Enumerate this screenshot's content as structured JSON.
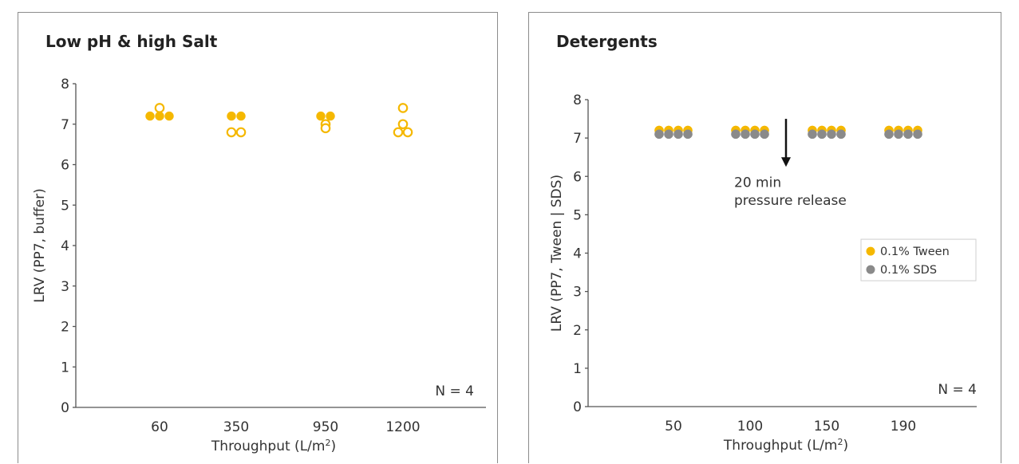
{
  "chart_data": [
    {
      "type": "scatter",
      "title": "Low pH & high Salt",
      "xlabel": "Throughput (L/m²)",
      "ylabel": "LRV (PP7, buffer)",
      "ylim": [
        0,
        8
      ],
      "yticks": [
        "0",
        "1",
        "2",
        "3",
        "4",
        "5",
        "6",
        "7",
        "8"
      ],
      "categories": [
        "60",
        "350",
        "950",
        "1200"
      ],
      "annotation": "N = 4",
      "grid": false,
      "marker_color": "#f5b800",
      "points": [
        {
          "x": "60",
          "y": 7.2,
          "filled": true
        },
        {
          "x": "60",
          "y": 7.2,
          "filled": true
        },
        {
          "x": "60",
          "y": 7.2,
          "filled": true
        },
        {
          "x": "60",
          "y": 7.4,
          "filled": false
        },
        {
          "x": "350",
          "y": 7.2,
          "filled": true
        },
        {
          "x": "350",
          "y": 7.2,
          "filled": true
        },
        {
          "x": "350",
          "y": 6.8,
          "filled": false
        },
        {
          "x": "350",
          "y": 6.8,
          "filled": false
        },
        {
          "x": "950",
          "y": 7.2,
          "filled": true
        },
        {
          "x": "950",
          "y": 7.2,
          "filled": true
        },
        {
          "x": "950",
          "y": 7.0,
          "filled": false
        },
        {
          "x": "950",
          "y": 6.9,
          "filled": false
        },
        {
          "x": "1200",
          "y": 7.4,
          "filled": false
        },
        {
          "x": "1200",
          "y": 7.0,
          "filled": false
        },
        {
          "x": "1200",
          "y": 6.8,
          "filled": false
        },
        {
          "x": "1200",
          "y": 6.8,
          "filled": false
        }
      ]
    },
    {
      "type": "scatter",
      "title": "Detergents",
      "xlabel": "Throughput (L/m²)",
      "ylabel": "LRV (PP7, Tween | SDS)",
      "ylim": [
        0,
        8
      ],
      "yticks": [
        "0",
        "1",
        "2",
        "3",
        "4",
        "5",
        "6",
        "7",
        "8"
      ],
      "categories": [
        "50",
        "100",
        "150",
        "190"
      ],
      "annotation": "N = 4",
      "grid": false,
      "arrow_annotation": [
        "20 min",
        "pressure release"
      ],
      "legend_position": "right",
      "series": [
        {
          "name": "0.1% Tween",
          "color": "#f5b800",
          "values": [
            [
              7.2,
              7.2,
              7.2,
              7.2
            ],
            [
              7.2,
              7.2,
              7.2,
              7.2
            ],
            [
              7.2,
              7.2,
              7.2,
              7.2
            ],
            [
              7.2,
              7.2,
              7.2,
              7.2
            ]
          ]
        },
        {
          "name": "0.1% SDS",
          "color": "#8a8a8a",
          "values": [
            [
              7.1,
              7.1,
              7.1,
              7.1
            ],
            [
              7.1,
              7.1,
              7.1,
              7.1
            ],
            [
              7.1,
              7.1,
              7.1,
              7.1
            ],
            [
              7.1,
              7.1,
              7.1,
              7.1
            ]
          ]
        }
      ]
    }
  ]
}
